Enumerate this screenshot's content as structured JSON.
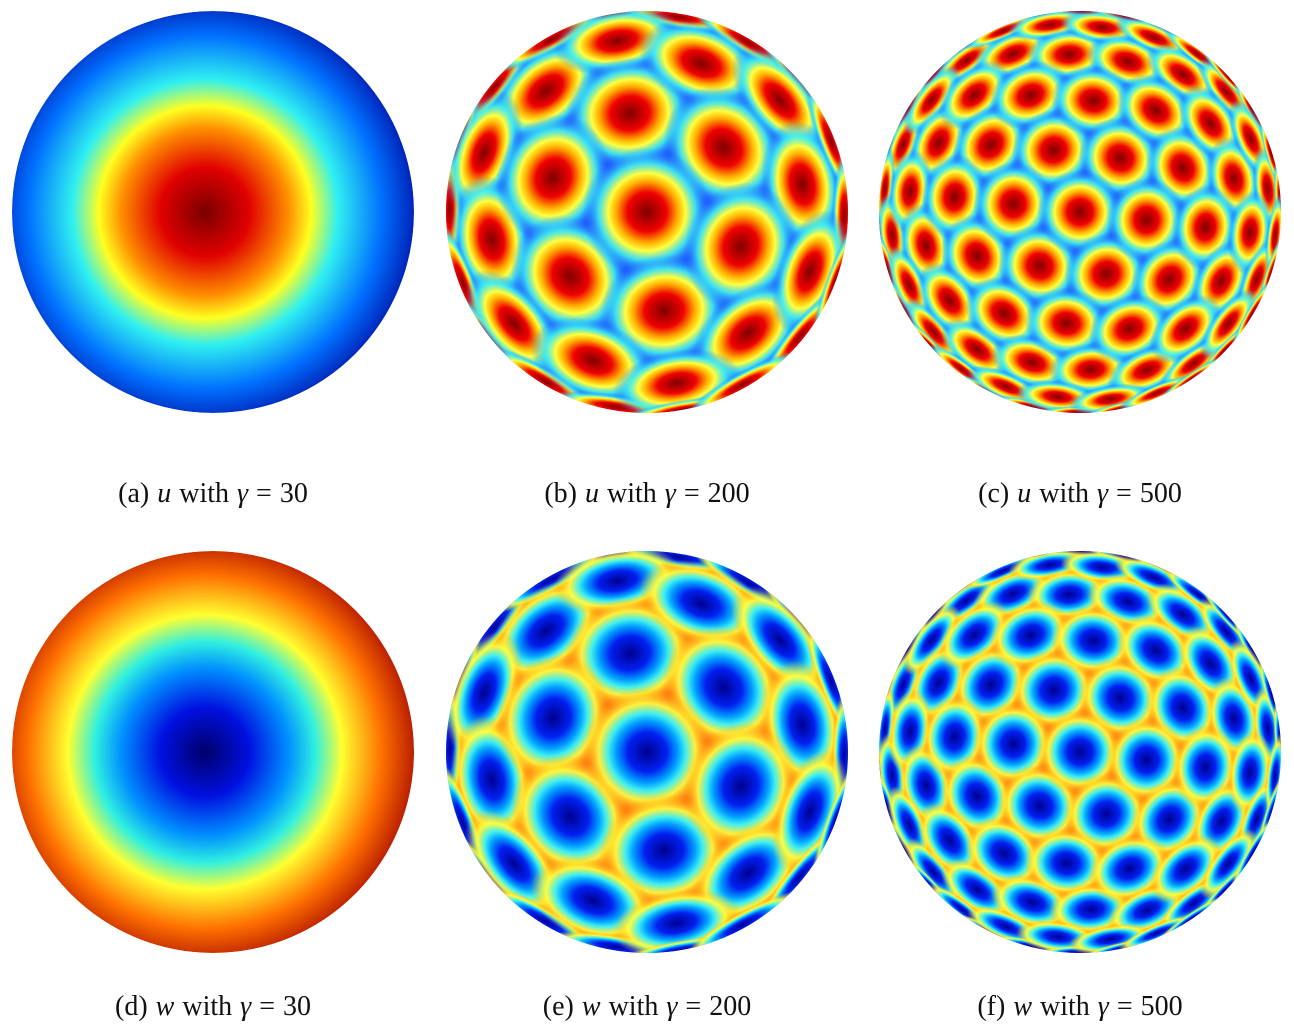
{
  "panels": [
    {
      "label": "(a)",
      "field": "u",
      "word": "with",
      "symbol": "γ",
      "relation": "=",
      "value": "30"
    },
    {
      "label": "(b)",
      "field": "u",
      "word": "with",
      "symbol": "γ",
      "relation": "=",
      "value": "200"
    },
    {
      "label": "(c)",
      "field": "u",
      "word": "with",
      "symbol": "γ",
      "relation": "=",
      "value": "500"
    },
    {
      "label": "(d)",
      "field": "w",
      "word": "with",
      "symbol": "γ",
      "relation": "=",
      "value": "30"
    },
    {
      "label": "(e)",
      "field": "w",
      "word": "with",
      "symbol": "γ",
      "relation": "=",
      "value": "200"
    },
    {
      "label": "(f)",
      "field": "w",
      "word": "with",
      "symbol": "γ",
      "relation": "=",
      "value": "500"
    }
  ]
}
